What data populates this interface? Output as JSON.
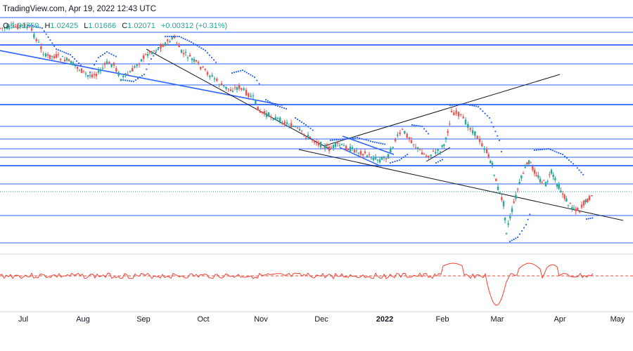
{
  "header": {
    "brand": "TradingView.com",
    "timestamp": "Apr 19, 2022 12:43 UTC"
  },
  "ohlc": {
    "open_label": "O",
    "open_value": "1.01759",
    "high_label": "H",
    "high_value": "1.02425",
    "low_label": "L",
    "low_value": "1.01666",
    "close_label": "C",
    "close_value": "1.02071",
    "change": "+0.00312 (+0.31%)"
  },
  "colors": {
    "up": "#26a69a",
    "down": "#ef5350",
    "horizontal_level": "#2962ff",
    "parabolic_sar": "#2962ff",
    "trendline": "#131722",
    "blue_channel": "#2962ff",
    "oscillator": "#f44336"
  },
  "chart_data": [
    {
      "type": "candlestick",
      "title": "",
      "x_ticks": [
        "Jul",
        "Aug",
        "Sep",
        "Oct",
        "Nov",
        "Dec",
        "2022",
        "Feb",
        "Mar",
        "Apr",
        "May"
      ],
      "y_ticks": [],
      "overlays": [
        "horizontal support/resistance levels",
        "trendlines",
        "parabolic SAR dots",
        "descending blue channel (Dec)"
      ],
      "approx_close_path": [
        {
          "period": "Jul",
          "close": "high"
        },
        {
          "period": "Aug",
          "close": "falling"
        },
        {
          "period": "Sep",
          "close": "rebound"
        },
        {
          "period": "Oct",
          "close": "falling"
        },
        {
          "period": "Nov",
          "close": "falling"
        },
        {
          "period": "Dec",
          "close": "consolidation"
        },
        {
          "period": "2022",
          "close": "range"
        },
        {
          "period": "Feb",
          "close": "spike up then drop"
        },
        {
          "period": "Mar",
          "close": "low then recovery"
        },
        {
          "period": "Apr",
          "close": "range low"
        }
      ],
      "last_close": 1.02071
    },
    {
      "type": "line",
      "title": "",
      "series": [
        {
          "name": "",
          "color": "#f44336"
        }
      ],
      "reference_line": "dashed"
    }
  ]
}
